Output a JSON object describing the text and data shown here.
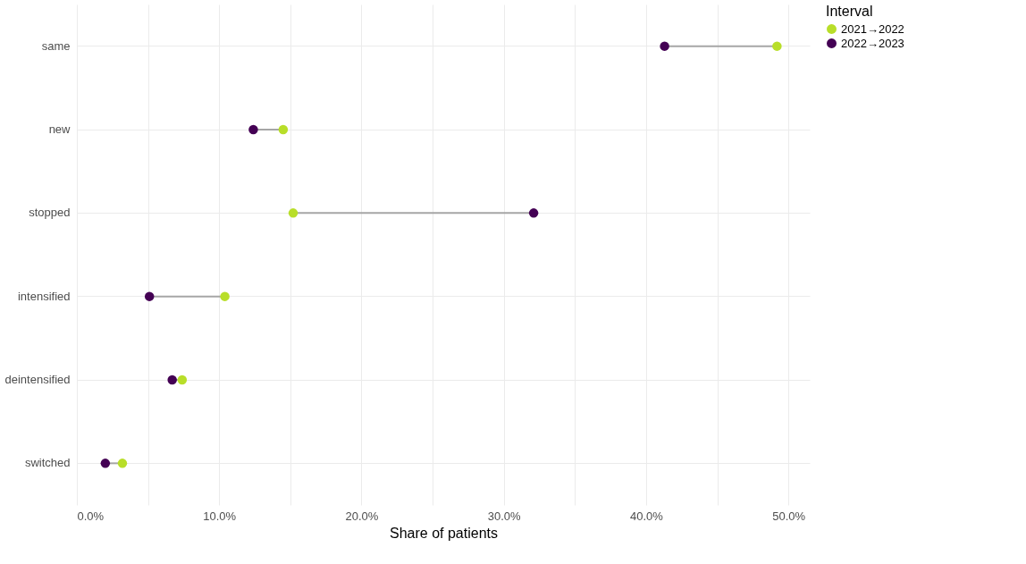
{
  "chart_data": {
    "type": "scatter",
    "orientation": "horizontal",
    "xlabel": "Share of patients",
    "legend_title": "Interval",
    "legend": "right",
    "grid": true,
    "marker": "circle",
    "categories": [
      "same",
      "new",
      "stopped",
      "intensified",
      "deintensified",
      "switched"
    ],
    "xlim": [
      0,
      51.5
    ],
    "xticks": [
      {
        "value": 0,
        "label": "0.0%"
      },
      {
        "value": 5,
        "label": null
      },
      {
        "value": 10,
        "label": "10.0%"
      },
      {
        "value": 15,
        "label": null
      },
      {
        "value": 20,
        "label": "20.0%"
      },
      {
        "value": 25,
        "label": null
      },
      {
        "value": 30,
        "label": "30.0%"
      },
      {
        "value": 35,
        "label": null
      },
      {
        "value": 40,
        "label": "40.0%"
      },
      {
        "value": 45,
        "label": null
      },
      {
        "value": 50,
        "label": "50.0%"
      }
    ],
    "series": [
      {
        "name": "2021→2022",
        "color": "#b8de29",
        "values": [
          49.2,
          14.5,
          15.2,
          10.4,
          7.4,
          3.2
        ]
      },
      {
        "name": "2022→2023",
        "color": "#440154",
        "values": [
          41.3,
          12.4,
          32.1,
          5.1,
          6.7,
          2.0
        ]
      }
    ]
  }
}
